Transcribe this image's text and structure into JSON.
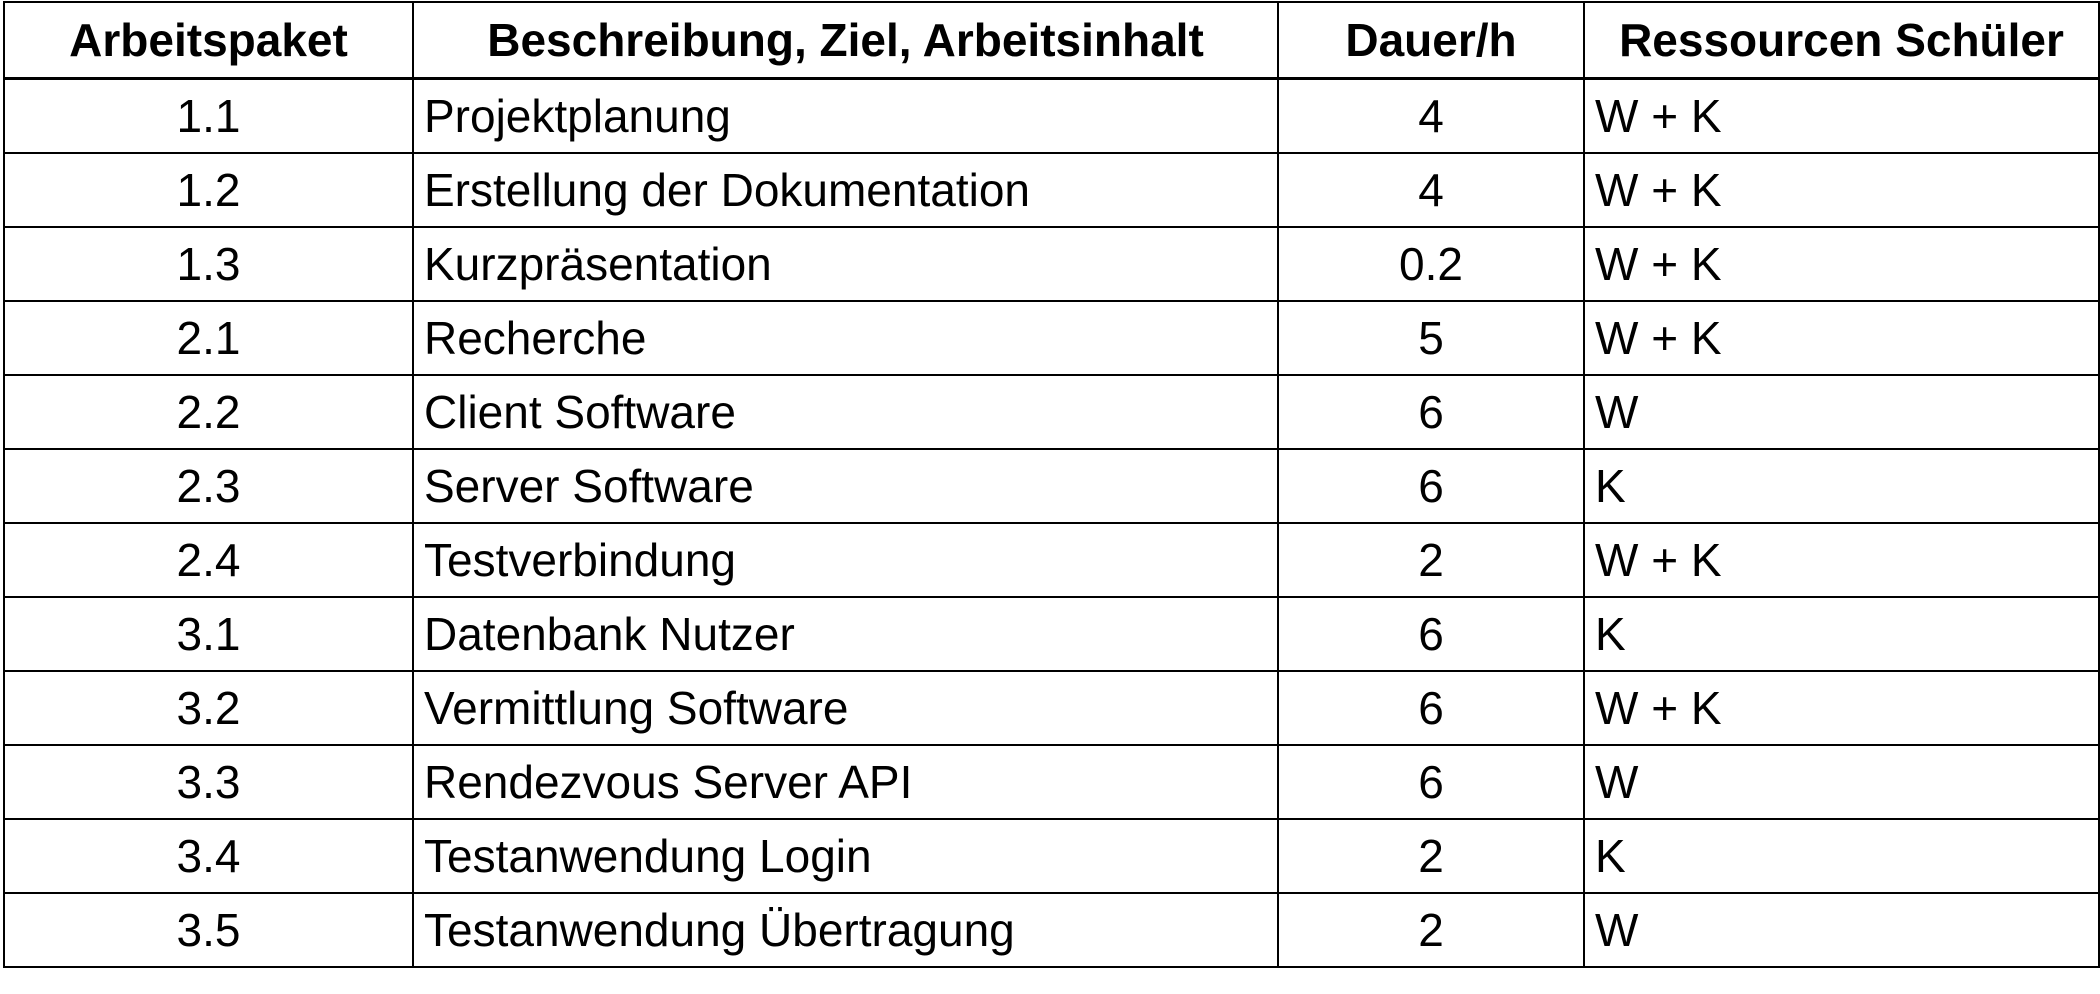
{
  "table": {
    "headers": [
      "Arbeitspaket",
      "Beschreibung, Ziel, Arbeitsinhalt",
      "Dauer/h",
      "Ressourcen Schüler"
    ],
    "rows": [
      {
        "paket": "1.1",
        "beschreibung": "Projektplanung",
        "dauer": "4",
        "ressourcen": "W + K"
      },
      {
        "paket": "1.2",
        "beschreibung": "Erstellung der Dokumentation",
        "dauer": "4",
        "ressourcen": "W + K"
      },
      {
        "paket": "1.3",
        "beschreibung": "Kurzpräsentation",
        "dauer": "0.2",
        "ressourcen": "W + K"
      },
      {
        "paket": "2.1",
        "beschreibung": "Recherche",
        "dauer": "5",
        "ressourcen": "W + K"
      },
      {
        "paket": "2.2",
        "beschreibung": "Client Software",
        "dauer": "6",
        "ressourcen": "W"
      },
      {
        "paket": "2.3",
        "beschreibung": "Server Software",
        "dauer": "6",
        "ressourcen": "K"
      },
      {
        "paket": "2.4",
        "beschreibung": "Testverbindung",
        "dauer": "2",
        "ressourcen": "W + K"
      },
      {
        "paket": "3.1",
        "beschreibung": "Datenbank Nutzer",
        "dauer": "6",
        "ressourcen": "K"
      },
      {
        "paket": "3.2",
        "beschreibung": "Vermittlung Software",
        "dauer": "6",
        "ressourcen": "W + K"
      },
      {
        "paket": "3.3",
        "beschreibung": "Rendezvous Server API",
        "dauer": "6",
        "ressourcen": "W"
      },
      {
        "paket": "3.4",
        "beschreibung": "Testanwendung Login",
        "dauer": "2",
        "ressourcen": "K"
      },
      {
        "paket": "3.5",
        "beschreibung": "Testanwendung Übertragung",
        "dauer": "2",
        "ressourcen": "W"
      }
    ]
  }
}
